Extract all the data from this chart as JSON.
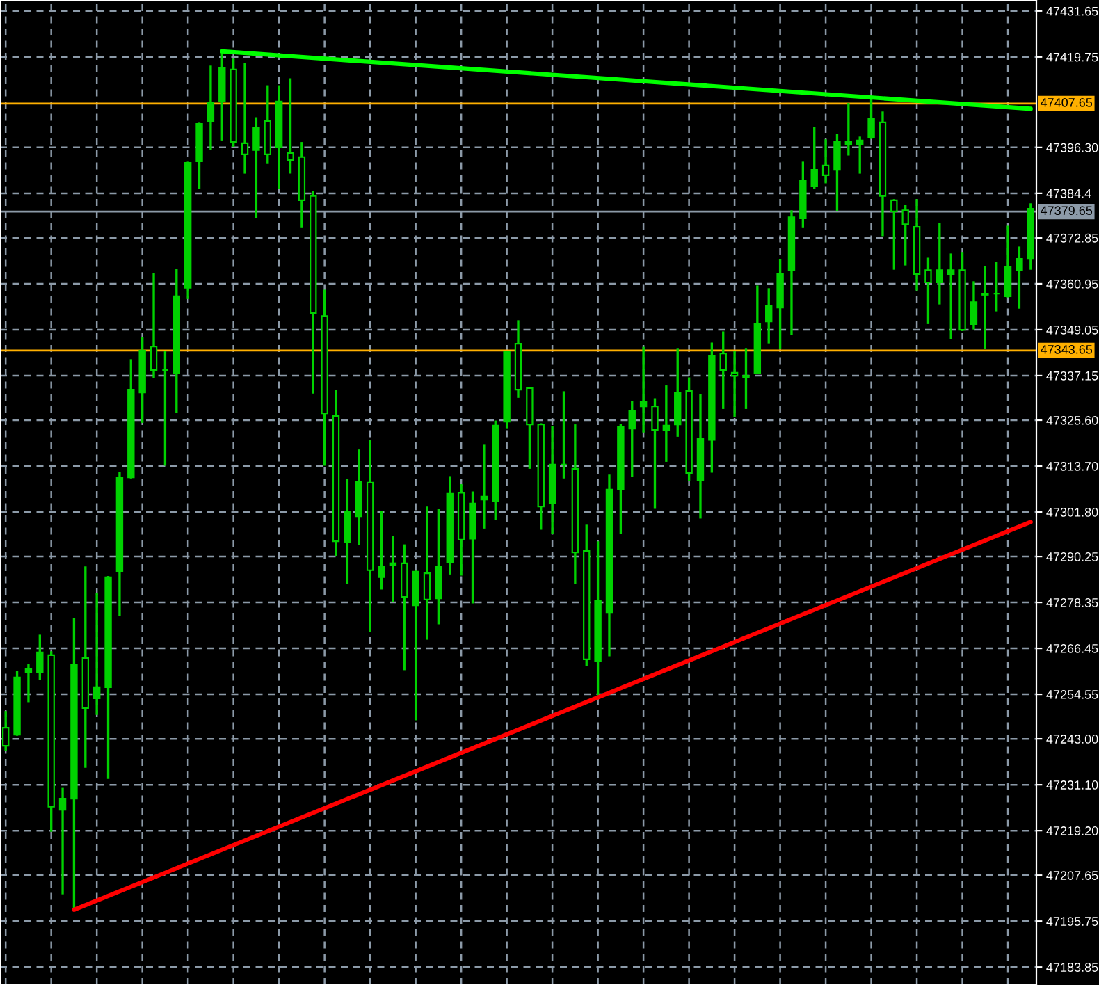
{
  "chart_data": {
    "type": "candlestick",
    "categories": [
      null,
      null,
      null,
      null,
      null,
      null,
      null,
      null,
      null,
      null,
      null,
      null,
      null,
      null,
      null,
      null,
      null,
      null,
      null,
      null,
      null,
      null,
      null,
      null,
      null,
      null,
      null,
      null,
      null,
      null,
      null,
      null,
      null,
      null,
      null,
      null,
      null,
      null,
      null,
      null,
      null,
      null,
      null,
      null,
      null,
      null,
      null,
      null,
      null,
      null,
      null,
      null,
      null,
      null,
      null,
      null,
      null,
      null,
      null,
      null,
      null,
      null,
      null,
      null,
      null,
      null,
      null,
      null,
      null,
      null,
      null,
      null,
      null,
      null,
      null,
      null,
      null,
      null,
      null,
      null,
      null,
      null,
      null,
      null,
      null,
      null,
      null,
      null,
      null,
      null,
      null
    ],
    "series": [
      {
        "color": "#00d200",
        "ohlc": [
          [
            47245.9,
            47249.9,
            47240.1,
            47241.2
          ],
          [
            47244.1,
            47260.3,
            47244.1,
            47258.9
          ],
          [
            47260.3,
            47262.1,
            47252.8,
            47261.1
          ],
          [
            47260.3,
            47269.7,
            47258.5,
            47265.4
          ],
          [
            47264.7,
            47265.4,
            47219.2,
            47225.4
          ],
          [
            47224.6,
            47230.0,
            47203.0,
            47227.5
          ],
          [
            47227.5,
            47274.0,
            47198.7,
            47262.1
          ],
          [
            47263.9,
            47287.4,
            47235.8,
            47251.0
          ],
          [
            47253.5,
            47280.5,
            47249.5,
            47256.4
          ],
          [
            47256.4,
            47284.9,
            47232.9,
            47284.9
          ],
          [
            47286.3,
            47311.9,
            47275.1,
            47310.8
          ],
          [
            47310.8,
            47341.1,
            47310.8,
            47333.5
          ],
          [
            47332.8,
            47346.9,
            47325.2,
            47343.6
          ],
          [
            47344.7,
            47363.5,
            47336.8,
            47338.6
          ],
          [
            47338.6,
            47343.3,
            47314.1,
            47338.6
          ],
          [
            47337.9,
            47364.5,
            47327.8,
            47357.7
          ],
          [
            47359.9,
            47392.3,
            47357.3,
            47392.3
          ],
          [
            47392.7,
            47402.4,
            47385.8,
            47402.4
          ],
          [
            47403.1,
            47417.2,
            47395.9,
            47407.8
          ],
          [
            47408.2,
            47421.2,
            47398.4,
            47416.8
          ],
          [
            47416.5,
            47419.0,
            47396.6,
            47397.7
          ],
          [
            47397.4,
            47417.9,
            47389.8,
            47394.5
          ],
          [
            47395.6,
            47403.8,
            47378.2,
            47401.3
          ],
          [
            47403.1,
            47412.1,
            47392.3,
            47394.5
          ],
          [
            47396.3,
            47412.1,
            47385.8,
            47408.2
          ],
          [
            47394.8,
            47413.9,
            47389.8,
            47393.0
          ],
          [
            47393.8,
            47397.4,
            47375.7,
            47382.6
          ],
          [
            47383.7,
            47384.7,
            47332.8,
            47353.4
          ],
          [
            47352.6,
            47359.1,
            47314.1,
            47327.4
          ],
          [
            47326.7,
            47333.2,
            47290.6,
            47294.2
          ],
          [
            47293.9,
            47310.1,
            47283.4,
            47301.8
          ],
          [
            47300.7,
            47317.7,
            47293.5,
            47309.7
          ],
          [
            47309.4,
            47320.2,
            47271.1,
            47286.7
          ],
          [
            47284.9,
            47301.8,
            47282.0,
            47287.7
          ],
          [
            47288.1,
            47295.3,
            47278.7,
            47288.5
          ],
          [
            47288.5,
            47293.1,
            47261.1,
            47279.8
          ],
          [
            47277.6,
            47286.3,
            47248.1,
            47286.3
          ],
          [
            47285.9,
            47302.9,
            47269.0,
            47279.1
          ],
          [
            47279.4,
            47302.2,
            47273.0,
            47287.7
          ],
          [
            47288.8,
            47310.8,
            47285.9,
            47306.5
          ],
          [
            47306.8,
            47308.7,
            47285.6,
            47294.6
          ],
          [
            47294.9,
            47306.8,
            47278.4,
            47304.0
          ],
          [
            47305.0,
            47319.1,
            47297.8,
            47305.8
          ],
          [
            47304.7,
            47325.2,
            47300.0,
            47324.2
          ],
          [
            47325.2,
            47343.3,
            47323.8,
            47343.3
          ],
          [
            47345.4,
            47351.2,
            47331.7,
            47333.5
          ],
          [
            47333.9,
            47333.9,
            47313.3,
            47324.5
          ],
          [
            47324.5,
            47324.5,
            47297.5,
            47303.2
          ],
          [
            47304.0,
            47323.8,
            47296.4,
            47314.1
          ],
          [
            47314.1,
            47332.8,
            47310.8,
            47314.1
          ],
          [
            47313.0,
            47324.2,
            47283.4,
            47291.3
          ],
          [
            47291.7,
            47298.2,
            47262.1,
            47263.6
          ],
          [
            47263.2,
            47293.9,
            47254.6,
            47278.7
          ],
          [
            47275.8,
            47311.2,
            47264.7,
            47307.6
          ],
          [
            47307.6,
            47324.2,
            47296.4,
            47323.8
          ],
          [
            47323.4,
            47330.3,
            47311.2,
            47328.1
          ],
          [
            47329.2,
            47344.3,
            47322.7,
            47330.3
          ],
          [
            47329.2,
            47331.0,
            47302.9,
            47323.1
          ],
          [
            47323.1,
            47334.3,
            47315.1,
            47324.2
          ],
          [
            47324.5,
            47344.0,
            47321.6,
            47332.8
          ],
          [
            47333.2,
            47336.4,
            47310.1,
            47311.9
          ],
          [
            47310.1,
            47332.1,
            47300.4,
            47320.9
          ],
          [
            47320.5,
            47345.4,
            47312.3,
            47342.2
          ],
          [
            47342.9,
            47348.3,
            47328.8,
            47338.6
          ],
          [
            47337.9,
            47343.3,
            47326.7,
            47337.1
          ],
          [
            47336.8,
            47344.0,
            47328.8,
            47337.1
          ],
          [
            47337.9,
            47360.2,
            47337.9,
            47350.5
          ],
          [
            47351.2,
            47359.5,
            47345.8,
            47355.2
          ],
          [
            47354.8,
            47367.1,
            47344.3,
            47363.5
          ],
          [
            47364.5,
            47379.7,
            47348.0,
            47378.2
          ],
          [
            47377.9,
            47392.3,
            47375.7,
            47387.6
          ],
          [
            47386.2,
            47401.3,
            47385.8,
            47390.5
          ],
          [
            47391.6,
            47398.1,
            47387.3,
            47389.1
          ],
          [
            47390.5,
            47399.5,
            47380.0,
            47397.7
          ],
          [
            47397.0,
            47407.5,
            47394.5,
            47397.7
          ],
          [
            47397.0,
            47398.8,
            47389.8,
            47398.1
          ],
          [
            47398.8,
            47408.9,
            47398.8,
            47403.8
          ],
          [
            47402.8,
            47405.3,
            47373.6,
            47383.7
          ],
          [
            47382.6,
            47382.6,
            47364.9,
            47379.7
          ],
          [
            47380.0,
            47381.1,
            47366.0,
            47376.4
          ],
          [
            47375.7,
            47382.6,
            47359.5,
            47363.5
          ],
          [
            47364.5,
            47367.4,
            47350.8,
            47361.3
          ],
          [
            47361.3,
            47376.4,
            47355.9,
            47364.5
          ],
          [
            47363.5,
            47368.5,
            47346.9,
            47364.5
          ],
          [
            47364.5,
            47368.9,
            47349.0,
            47349.0
          ],
          [
            47350.5,
            47361.3,
            47349.4,
            47356.2
          ],
          [
            47358.4,
            47365.3,
            47344.3,
            47358.1
          ],
          [
            47358.4,
            47366.3,
            47354.1,
            47358.4
          ],
          [
            47357.7,
            47375.7,
            47357.7,
            47365.3
          ],
          [
            47364.5,
            47370.3,
            47354.8,
            47367.4
          ],
          [
            47367.4,
            47381.5,
            47364.9,
            47380.4
          ]
        ]
      },
      {
        "type": "line",
        "color": "#00ff00",
        "values": [
          null,
          null,
          null,
          null,
          null,
          null,
          null,
          null,
          null,
          null,
          null,
          null,
          null,
          null,
          null,
          null,
          null,
          null,
          null,
          47421.2,
          null,
          null,
          null,
          null,
          null,
          null,
          null,
          null,
          null,
          null,
          null,
          null,
          null,
          null,
          null,
          null,
          null,
          null,
          null,
          null,
          null,
          null,
          null,
          null,
          null,
          null,
          null,
          null,
          null,
          null,
          null,
          null,
          null,
          null,
          null,
          null,
          null,
          null,
          null,
          null,
          null,
          null,
          null,
          null,
          null,
          null,
          null,
          null,
          null,
          null,
          null,
          null,
          null,
          null,
          null,
          null,
          null,
          null,
          null,
          null,
          null,
          null,
          null,
          null,
          null,
          null,
          null,
          null,
          null,
          null,
          47406.3
        ]
      },
      {
        "type": "line",
        "color": "#ff0000",
        "values": [
          null,
          null,
          null,
          null,
          null,
          null,
          47198.7,
          null,
          null,
          null,
          null,
          null,
          null,
          null,
          null,
          null,
          null,
          null,
          null,
          null,
          null,
          null,
          null,
          null,
          null,
          null,
          null,
          null,
          null,
          null,
          null,
          null,
          null,
          null,
          null,
          null,
          null,
          null,
          null,
          null,
          null,
          null,
          null,
          null,
          null,
          null,
          null,
          null,
          null,
          null,
          null,
          null,
          null,
          null,
          null,
          null,
          null,
          null,
          null,
          null,
          null,
          null,
          null,
          null,
          null,
          null,
          null,
          null,
          null,
          null,
          null,
          null,
          null,
          null,
          null,
          null,
          null,
          null,
          null,
          null,
          null,
          null,
          null,
          null,
          null,
          null,
          null,
          null,
          null,
          null,
          47299.2
        ]
      }
    ],
    "ylim": [
      47179.2,
      47434.5
    ],
    "yticks": [
      47431.65,
      47419.75,
      {
        "value": 47396.3,
        "label": "47396.30"
      },
      47384.4,
      47372.85,
      47360.95,
      47349.05,
      47337.15,
      {
        "value": 47325.6,
        "label": "47325.60"
      },
      {
        "value": 47313.7,
        "label": "47313.70"
      },
      {
        "value": 47301.8,
        "label": "47301.80"
      },
      47290.25,
      47278.35,
      47266.45,
      47254.55,
      {
        "value": 47243.0,
        "label": "47243.00"
      },
      {
        "value": 47231.1,
        "label": "47231.10"
      },
      {
        "value": 47219.2,
        "label": "47219.20"
      },
      47207.65,
      47195.75,
      47183.85
    ],
    "ref_lines": [
      {
        "axis": "y",
        "value": 47407.65,
        "label": "47407.65",
        "color": "#ffb000"
      },
      {
        "axis": "y",
        "value": 47379.65,
        "label": "47379.65",
        "color": "#8c9aa8"
      },
      {
        "axis": "y",
        "value": 47343.65,
        "label": "47343.65",
        "color": "#ffb000"
      }
    ],
    "grid": true,
    "line_style": "solid",
    "tick_labels": "y"
  }
}
